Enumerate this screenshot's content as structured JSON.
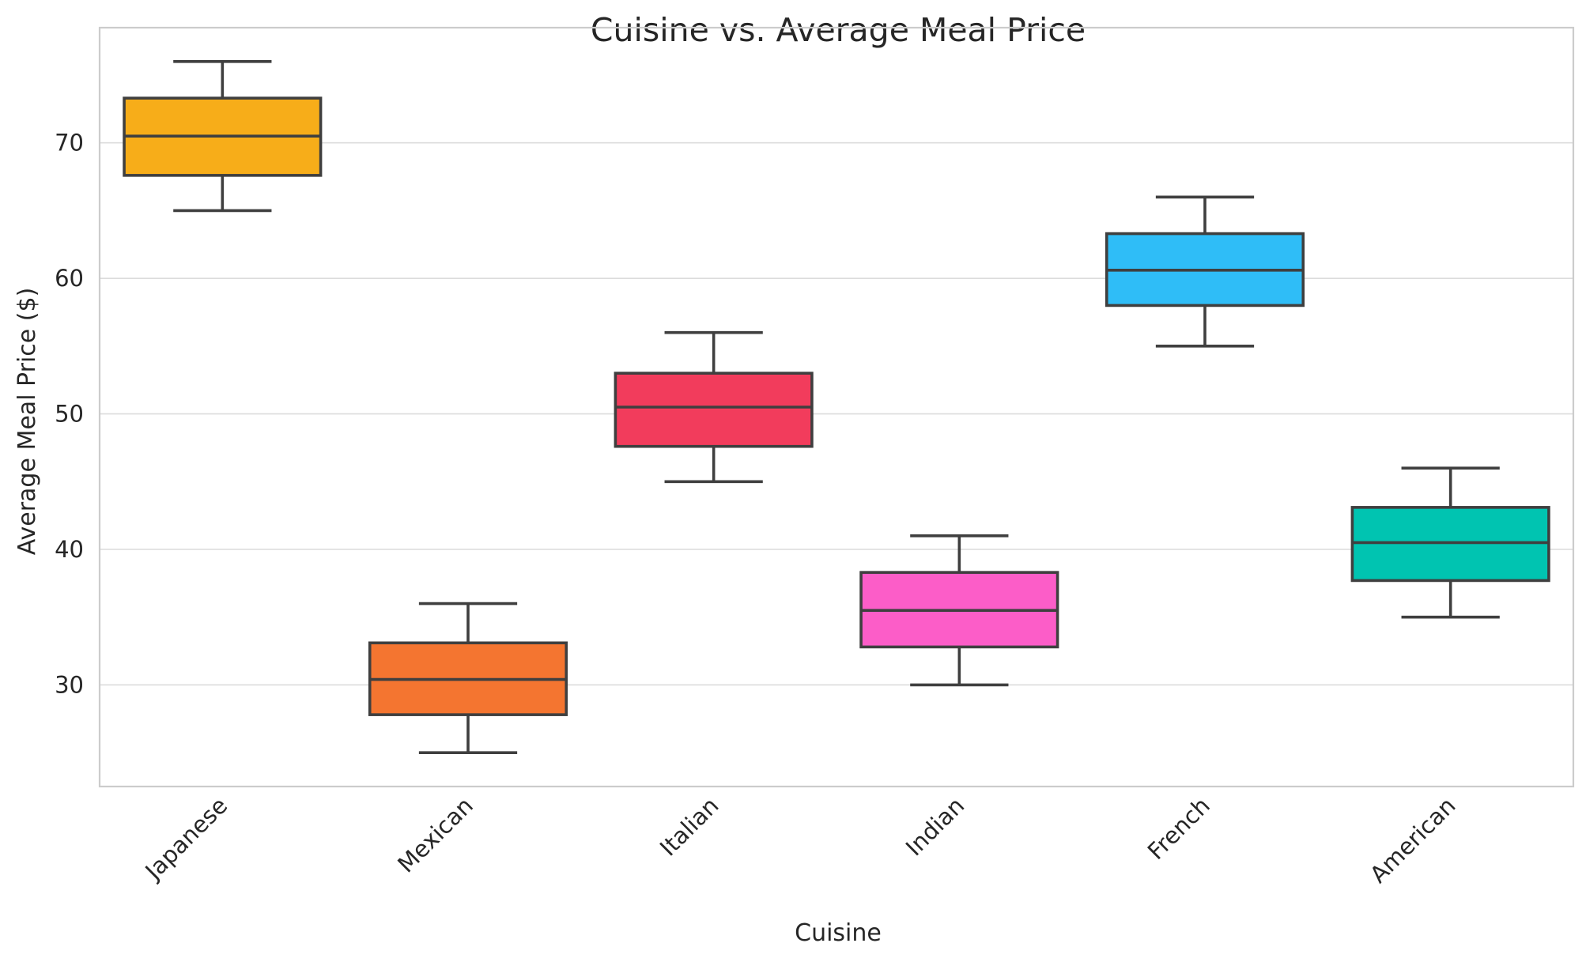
{
  "chart_data": {
    "type": "box",
    "title": "Cuisine vs. Average Meal Price",
    "xlabel": "Cuisine",
    "ylabel": "Average Meal Price ($)",
    "ylim": [
      22.5,
      78.5
    ],
    "yticks": [
      30,
      40,
      50,
      60,
      70
    ],
    "grid": true,
    "categories": [
      "Japanese",
      "Mexican",
      "Italian",
      "Indian",
      "French",
      "American"
    ],
    "boxes": [
      {
        "category": "Japanese",
        "whisker_low": 65,
        "q1": 67.6,
        "median": 70.5,
        "q3": 73.3,
        "whisker_high": 76,
        "color": "#F7AD19"
      },
      {
        "category": "Mexican",
        "whisker_low": 25,
        "q1": 27.8,
        "median": 30.4,
        "q3": 33.1,
        "whisker_high": 36,
        "color": "#F47530"
      },
      {
        "category": "Italian",
        "whisker_low": 45,
        "q1": 47.6,
        "median": 50.5,
        "q3": 53.0,
        "whisker_high": 56,
        "color": "#F23C5C"
      },
      {
        "category": "Indian",
        "whisker_low": 30,
        "q1": 32.8,
        "median": 35.5,
        "q3": 38.3,
        "whisker_high": 41,
        "color": "#FC5DC8"
      },
      {
        "category": "French",
        "whisker_low": 55,
        "q1": 58.0,
        "median": 60.6,
        "q3": 63.3,
        "whisker_high": 66,
        "color": "#2FBDF7"
      },
      {
        "category": "American",
        "whisker_low": 35,
        "q1": 37.7,
        "median": 40.5,
        "q3": 43.1,
        "whisker_high": 46,
        "color": "#00C4B1"
      }
    ],
    "colors": {
      "background": "#FFFFFF",
      "grid": "#DCDCDC",
      "spine": "#CCCCCC",
      "box_edge": "#3F3F3F"
    }
  }
}
